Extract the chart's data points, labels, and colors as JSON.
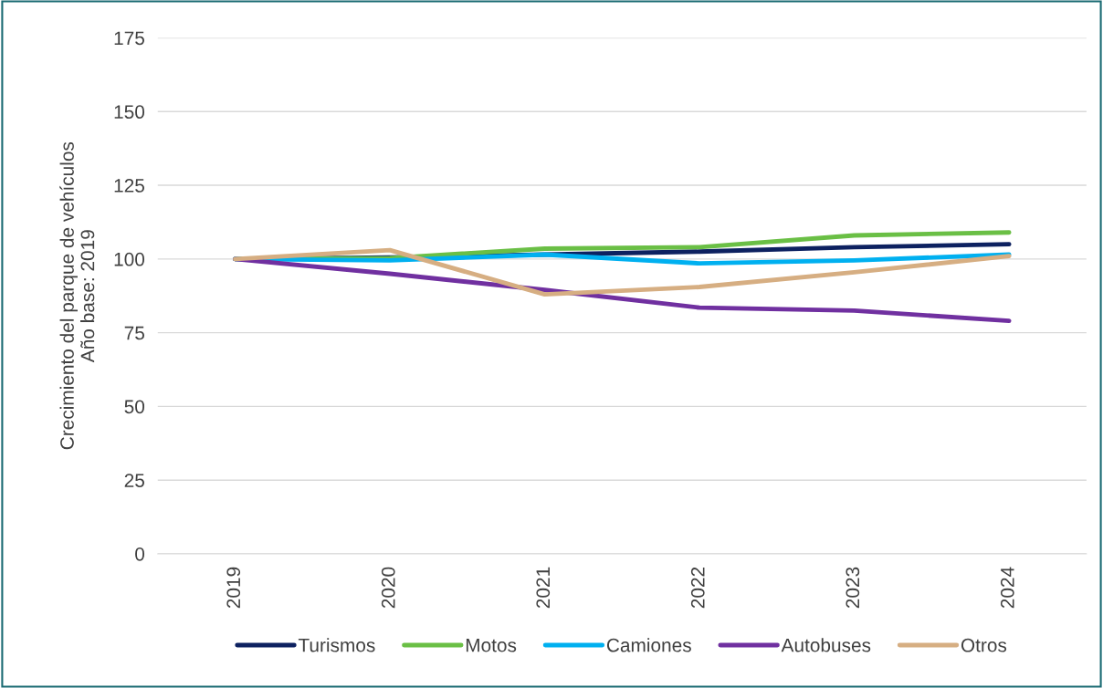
{
  "chart_data": {
    "type": "line",
    "ylabel": "Crecimiento del parque de vehículos\nAño base: 2019",
    "categories": [
      "2019",
      "2020",
      "2021",
      "2022",
      "2023",
      "2024"
    ],
    "series": [
      {
        "name": "Turismos",
        "color": "#0d2160",
        "values": [
          100,
          100.5,
          101.5,
          102.5,
          104,
          105
        ]
      },
      {
        "name": "Motos",
        "color": "#6abf45",
        "values": [
          100,
          100.3,
          103.5,
          104,
          108,
          109
        ]
      },
      {
        "name": "Camiones",
        "color": "#00b0f0",
        "values": [
          100,
          99.5,
          101.5,
          98.5,
          99.5,
          101.5
        ]
      },
      {
        "name": "Autobuses",
        "color": "#7030a0",
        "values": [
          100,
          95,
          89.5,
          83.5,
          82.5,
          79
        ]
      },
      {
        "name": "Otros",
        "color": "#d6ae82",
        "values": [
          100,
          103,
          88,
          90.5,
          95.5,
          101
        ]
      }
    ],
    "ylim": [
      0,
      175
    ],
    "yticks": [
      0,
      25,
      50,
      75,
      100,
      125,
      150,
      175
    ],
    "grid": "y",
    "legend": "bottom",
    "marker": "none",
    "line_style": "solid"
  }
}
